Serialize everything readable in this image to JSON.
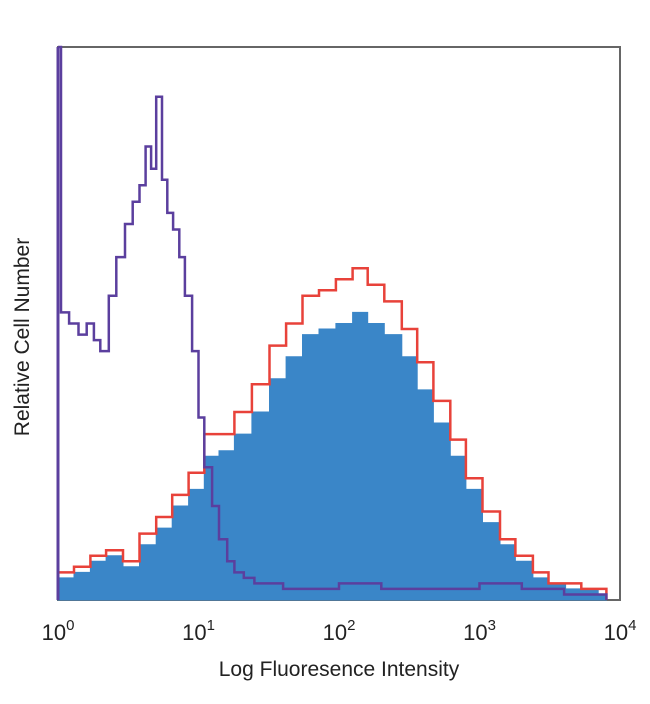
{
  "chart_data": {
    "type": "area",
    "title": "",
    "xlabel": "Log Fluoresence Intensity",
    "ylabel": "Relative Cell Number",
    "x_scale": "log",
    "xlim": [
      1,
      10000
    ],
    "ylim": [
      0,
      1
    ],
    "grid": false,
    "legend": "none",
    "xticks": [
      {
        "value": 1,
        "base": "10",
        "exp": "0"
      },
      {
        "value": 10,
        "base": "10",
        "exp": "1"
      },
      {
        "value": 100,
        "base": "10",
        "exp": "2"
      },
      {
        "value": 1000,
        "base": "10",
        "exp": "3"
      },
      {
        "value": 10000,
        "base": "10",
        "exp": "4"
      }
    ],
    "series": [
      {
        "style": "filled",
        "color": "#3a86c8",
        "x": [
          1.0,
          1.3,
          1.7,
          2.2,
          2.9,
          3.8,
          5.0,
          6.5,
          8.5,
          11,
          14,
          18,
          24,
          32,
          42,
          55,
          72,
          95,
          125,
          160,
          210,
          280,
          360,
          470,
          620,
          800,
          1050,
          1400,
          1800,
          2400,
          3100,
          4100,
          5300,
          7000,
          8000
        ],
        "y": [
          0.04,
          0.05,
          0.07,
          0.08,
          0.06,
          0.1,
          0.13,
          0.17,
          0.2,
          0.26,
          0.27,
          0.3,
          0.34,
          0.4,
          0.44,
          0.48,
          0.49,
          0.5,
          0.52,
          0.5,
          0.48,
          0.44,
          0.38,
          0.32,
          0.26,
          0.2,
          0.14,
          0.1,
          0.07,
          0.04,
          0.03,
          0.02,
          0.02,
          0.01,
          0.0
        ]
      },
      {
        "style": "outline",
        "color": "#e8423a",
        "x": [
          1.0,
          1.3,
          1.7,
          2.2,
          2.9,
          3.8,
          5.0,
          6.5,
          8.5,
          11,
          14,
          18,
          24,
          32,
          42,
          55,
          72,
          95,
          125,
          160,
          210,
          280,
          360,
          470,
          620,
          800,
          1050,
          1400,
          1800,
          2400,
          3100,
          4100,
          5300,
          7000,
          8000
        ],
        "y": [
          0.05,
          0.06,
          0.08,
          0.09,
          0.07,
          0.12,
          0.15,
          0.19,
          0.23,
          0.3,
          0.3,
          0.34,
          0.39,
          0.46,
          0.5,
          0.55,
          0.56,
          0.58,
          0.6,
          0.57,
          0.54,
          0.49,
          0.43,
          0.36,
          0.29,
          0.22,
          0.16,
          0.11,
          0.08,
          0.05,
          0.03,
          0.03,
          0.02,
          0.02,
          0.0
        ]
      },
      {
        "style": "outline",
        "color": "#5b3f9e",
        "x": [
          1.0,
          1.05,
          1.2,
          1.4,
          1.6,
          1.8,
          2.0,
          2.3,
          2.6,
          3.0,
          3.4,
          3.8,
          4.2,
          4.6,
          5.0,
          5.5,
          6.0,
          6.6,
          7.3,
          8.0,
          9.0,
          10,
          11,
          12.5,
          14,
          16,
          18,
          21,
          25,
          30,
          40,
          60,
          100,
          200,
          500,
          1000,
          2000,
          4000,
          8000
        ],
        "y": [
          1.0,
          0.52,
          0.5,
          0.48,
          0.5,
          0.47,
          0.45,
          0.55,
          0.62,
          0.68,
          0.72,
          0.75,
          0.82,
          0.78,
          0.91,
          0.76,
          0.7,
          0.67,
          0.62,
          0.55,
          0.45,
          0.33,
          0.24,
          0.17,
          0.11,
          0.07,
          0.05,
          0.04,
          0.03,
          0.03,
          0.02,
          0.02,
          0.03,
          0.02,
          0.02,
          0.03,
          0.02,
          0.01,
          0.0
        ]
      }
    ]
  }
}
